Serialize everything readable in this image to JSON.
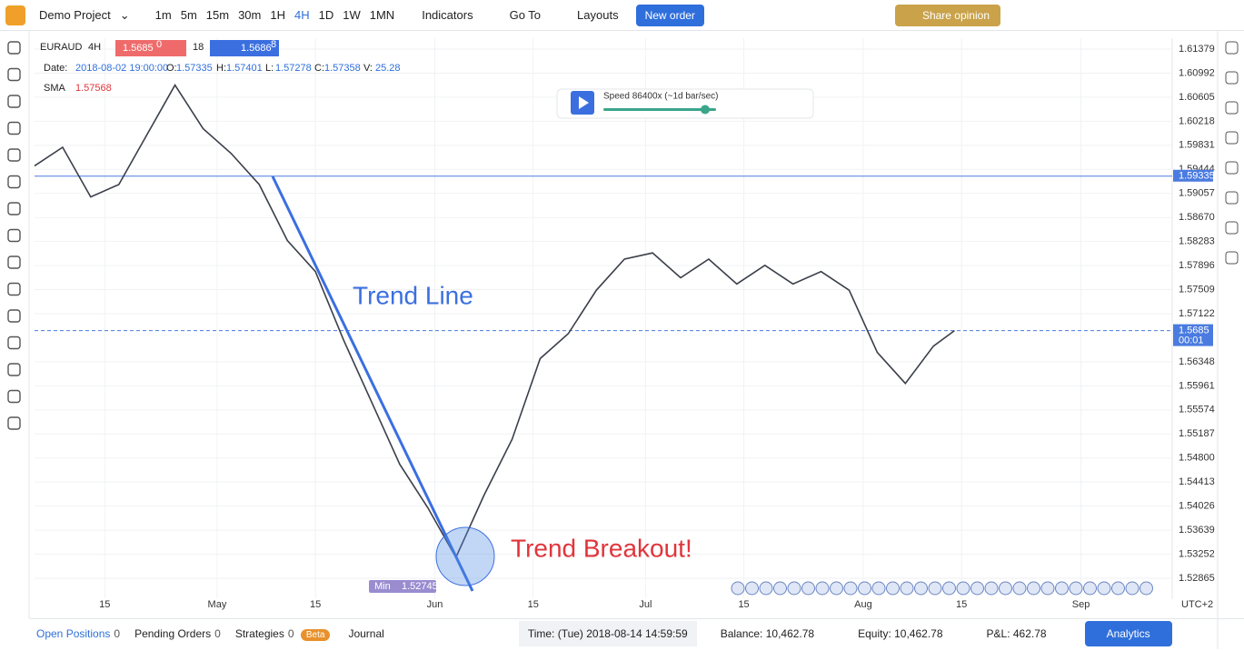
{
  "topbar": {
    "project": "Demo Project",
    "timeframes": [
      "1m",
      "5m",
      "15m",
      "30m",
      "1H",
      "4H",
      "1D",
      "1W",
      "1MN"
    ],
    "active_timeframe": "4H",
    "indicators": "Indicators",
    "goto": "Go To",
    "layouts": "Layouts",
    "new_order": "New order",
    "share": "Share opinion"
  },
  "header": {
    "symbol": "EURAUD",
    "interval": "4H",
    "bid": "1.5685",
    "bid_pip": "0",
    "spread": "18",
    "ask": "1.5686",
    "ask_pip": "8",
    "date_label": "Date:",
    "date": "2018-08-02 19:00:00",
    "o_label": "O:",
    "o": "1.57335",
    "h_label": "H:",
    "h": "1.57401",
    "l_label": "L:",
    "l": "1.57278",
    "c_label": "C:",
    "c": "1.57358",
    "v_label": "V:",
    "v": "25.28",
    "sma_label": "SMA",
    "sma": "1.57568"
  },
  "player": {
    "speed": "Speed 86400x (~1d bar/sec)"
  },
  "chart": {
    "type": "line",
    "color": "#3a3f4a",
    "x": [
      "2018-04-05",
      "2018-04-09",
      "2018-04-13",
      "2018-04-17",
      "2018-04-21",
      "2018-04-25",
      "2018-04-29",
      "2018-05-03",
      "2018-05-07",
      "2018-05-11",
      "2018-05-15",
      "2018-05-19",
      "2018-05-23",
      "2018-05-27",
      "2018-05-31",
      "2018-06-04",
      "2018-06-08",
      "2018-06-12",
      "2018-06-16",
      "2018-06-20",
      "2018-06-24",
      "2018-06-28",
      "2018-07-02",
      "2018-07-06",
      "2018-07-10",
      "2018-07-14",
      "2018-07-18",
      "2018-07-22",
      "2018-07-26",
      "2018-07-30",
      "2018-08-03",
      "2018-08-07",
      "2018-08-11",
      "2018-08-14"
    ],
    "values": [
      1.595,
      1.598,
      1.59,
      1.592,
      1.6,
      1.608,
      1.601,
      1.597,
      1.592,
      1.583,
      1.578,
      1.567,
      1.557,
      1.547,
      1.54,
      1.532,
      1.542,
      1.551,
      1.564,
      1.568,
      1.575,
      1.58,
      1.581,
      1.577,
      1.58,
      1.576,
      1.579,
      1.576,
      1.578,
      1.575,
      1.565,
      1.56,
      1.566,
      1.5685
    ],
    "xlim": [
      "2018-04-05",
      "2018-09-14"
    ],
    "xticks": [
      {
        "value": "2018-04-15",
        "label": "15"
      },
      {
        "value": "2018-05-01",
        "label": "May"
      },
      {
        "value": "2018-05-15",
        "label": "15"
      },
      {
        "value": "2018-06-01",
        "label": "Jun"
      },
      {
        "value": "2018-06-15",
        "label": "15"
      },
      {
        "value": "2018-07-01",
        "label": "Jul"
      },
      {
        "value": "2018-07-15",
        "label": "15"
      },
      {
        "value": "2018-08-01",
        "label": "Aug"
      },
      {
        "value": "2018-08-15",
        "label": "15"
      },
      {
        "value": "2018-09-01",
        "label": "Sep"
      }
    ],
    "ylim": [
      1.52543,
      1.61555
    ],
    "yticks": [
      1.61379,
      1.60992,
      1.60605,
      1.60218,
      1.59831,
      1.59444,
      1.59057,
      {
        "value": 1.5867,
        "label": "1.58670"
      },
      1.58283,
      1.57896,
      1.57509,
      1.57122,
      1.56348,
      1.55961,
      1.55574,
      1.55187,
      {
        "value": 1.548,
        "label": "1.54800"
      },
      1.54413,
      1.54026,
      1.53639,
      1.53252,
      1.52865
    ],
    "hline": {
      "value": 1.59335,
      "label": "1.59335"
    },
    "last": {
      "value": 1.5685,
      "label": "1.5685",
      "time": "00:01"
    },
    "timezone": "UTC+2",
    "annotations": {
      "trend_line": "Trend Line",
      "breakout": "Trend Breakout!",
      "min_label": "Min",
      "min_value": "1.52745"
    }
  },
  "bottombar": {
    "open_positions": "Open Positions",
    "open_count": "0",
    "pending": "Pending Orders",
    "pending_count": "0",
    "strategies": "Strategies",
    "strategies_count": "0",
    "beta": "Beta",
    "journal": "Journal",
    "time": "Time: (Tue) 2018-08-14 14:59:59",
    "balance": "Balance: 10,462.78",
    "equity": "Equity: 10,462.78",
    "pnl": "P&L: 462.78",
    "analytics": "Analytics"
  }
}
